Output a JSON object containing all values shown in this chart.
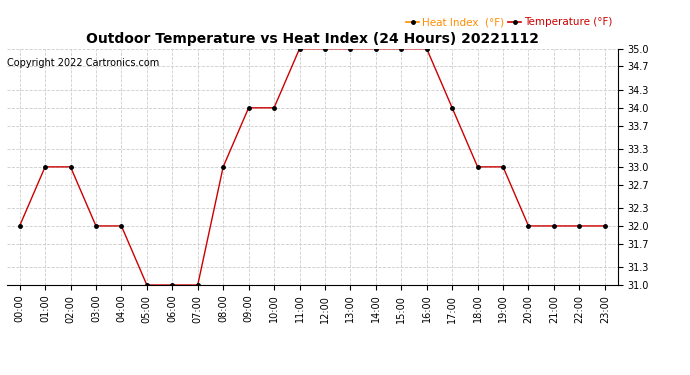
{
  "title": "Outdoor Temperature vs Heat Index (24 Hours) 20221112",
  "copyright": "Copyright 2022 Cartronics.com",
  "legend_heat": "Heat Index  (°F)",
  "legend_temp": "Temperature (°F)",
  "hours": [
    "00:00",
    "01:00",
    "02:00",
    "03:00",
    "04:00",
    "05:00",
    "06:00",
    "07:00",
    "08:00",
    "09:00",
    "10:00",
    "11:00",
    "12:00",
    "13:00",
    "14:00",
    "15:00",
    "16:00",
    "17:00",
    "18:00",
    "19:00",
    "20:00",
    "21:00",
    "22:00",
    "23:00"
  ],
  "temperature": [
    32.0,
    33.0,
    33.0,
    32.0,
    32.0,
    31.0,
    31.0,
    31.0,
    33.0,
    34.0,
    34.0,
    35.0,
    35.0,
    35.0,
    35.0,
    35.0,
    35.0,
    34.0,
    33.0,
    33.0,
    32.0,
    32.0,
    32.0,
    32.0
  ],
  "heat_index": [
    32.0,
    33.0,
    33.0,
    32.0,
    32.0,
    31.0,
    31.0,
    31.0,
    33.0,
    34.0,
    34.0,
    35.0,
    35.0,
    35.0,
    35.0,
    35.0,
    35.0,
    34.0,
    33.0,
    33.0,
    32.0,
    32.0,
    32.0,
    32.0
  ],
  "ylim": [
    31.0,
    35.0
  ],
  "yticks": [
    31.0,
    31.3,
    31.7,
    32.0,
    32.3,
    32.7,
    33.0,
    33.3,
    33.7,
    34.0,
    34.3,
    34.7,
    35.0
  ],
  "line_color": "#cc0000",
  "marker_color": "#000000",
  "heat_index_legend_color": "#ff8c00",
  "temp_legend_color": "#cc0000",
  "grid_color": "#cccccc",
  "bg_color": "#ffffff",
  "title_fontsize": 10,
  "copyright_fontsize": 7,
  "tick_fontsize": 7,
  "legend_fontsize": 7.5
}
